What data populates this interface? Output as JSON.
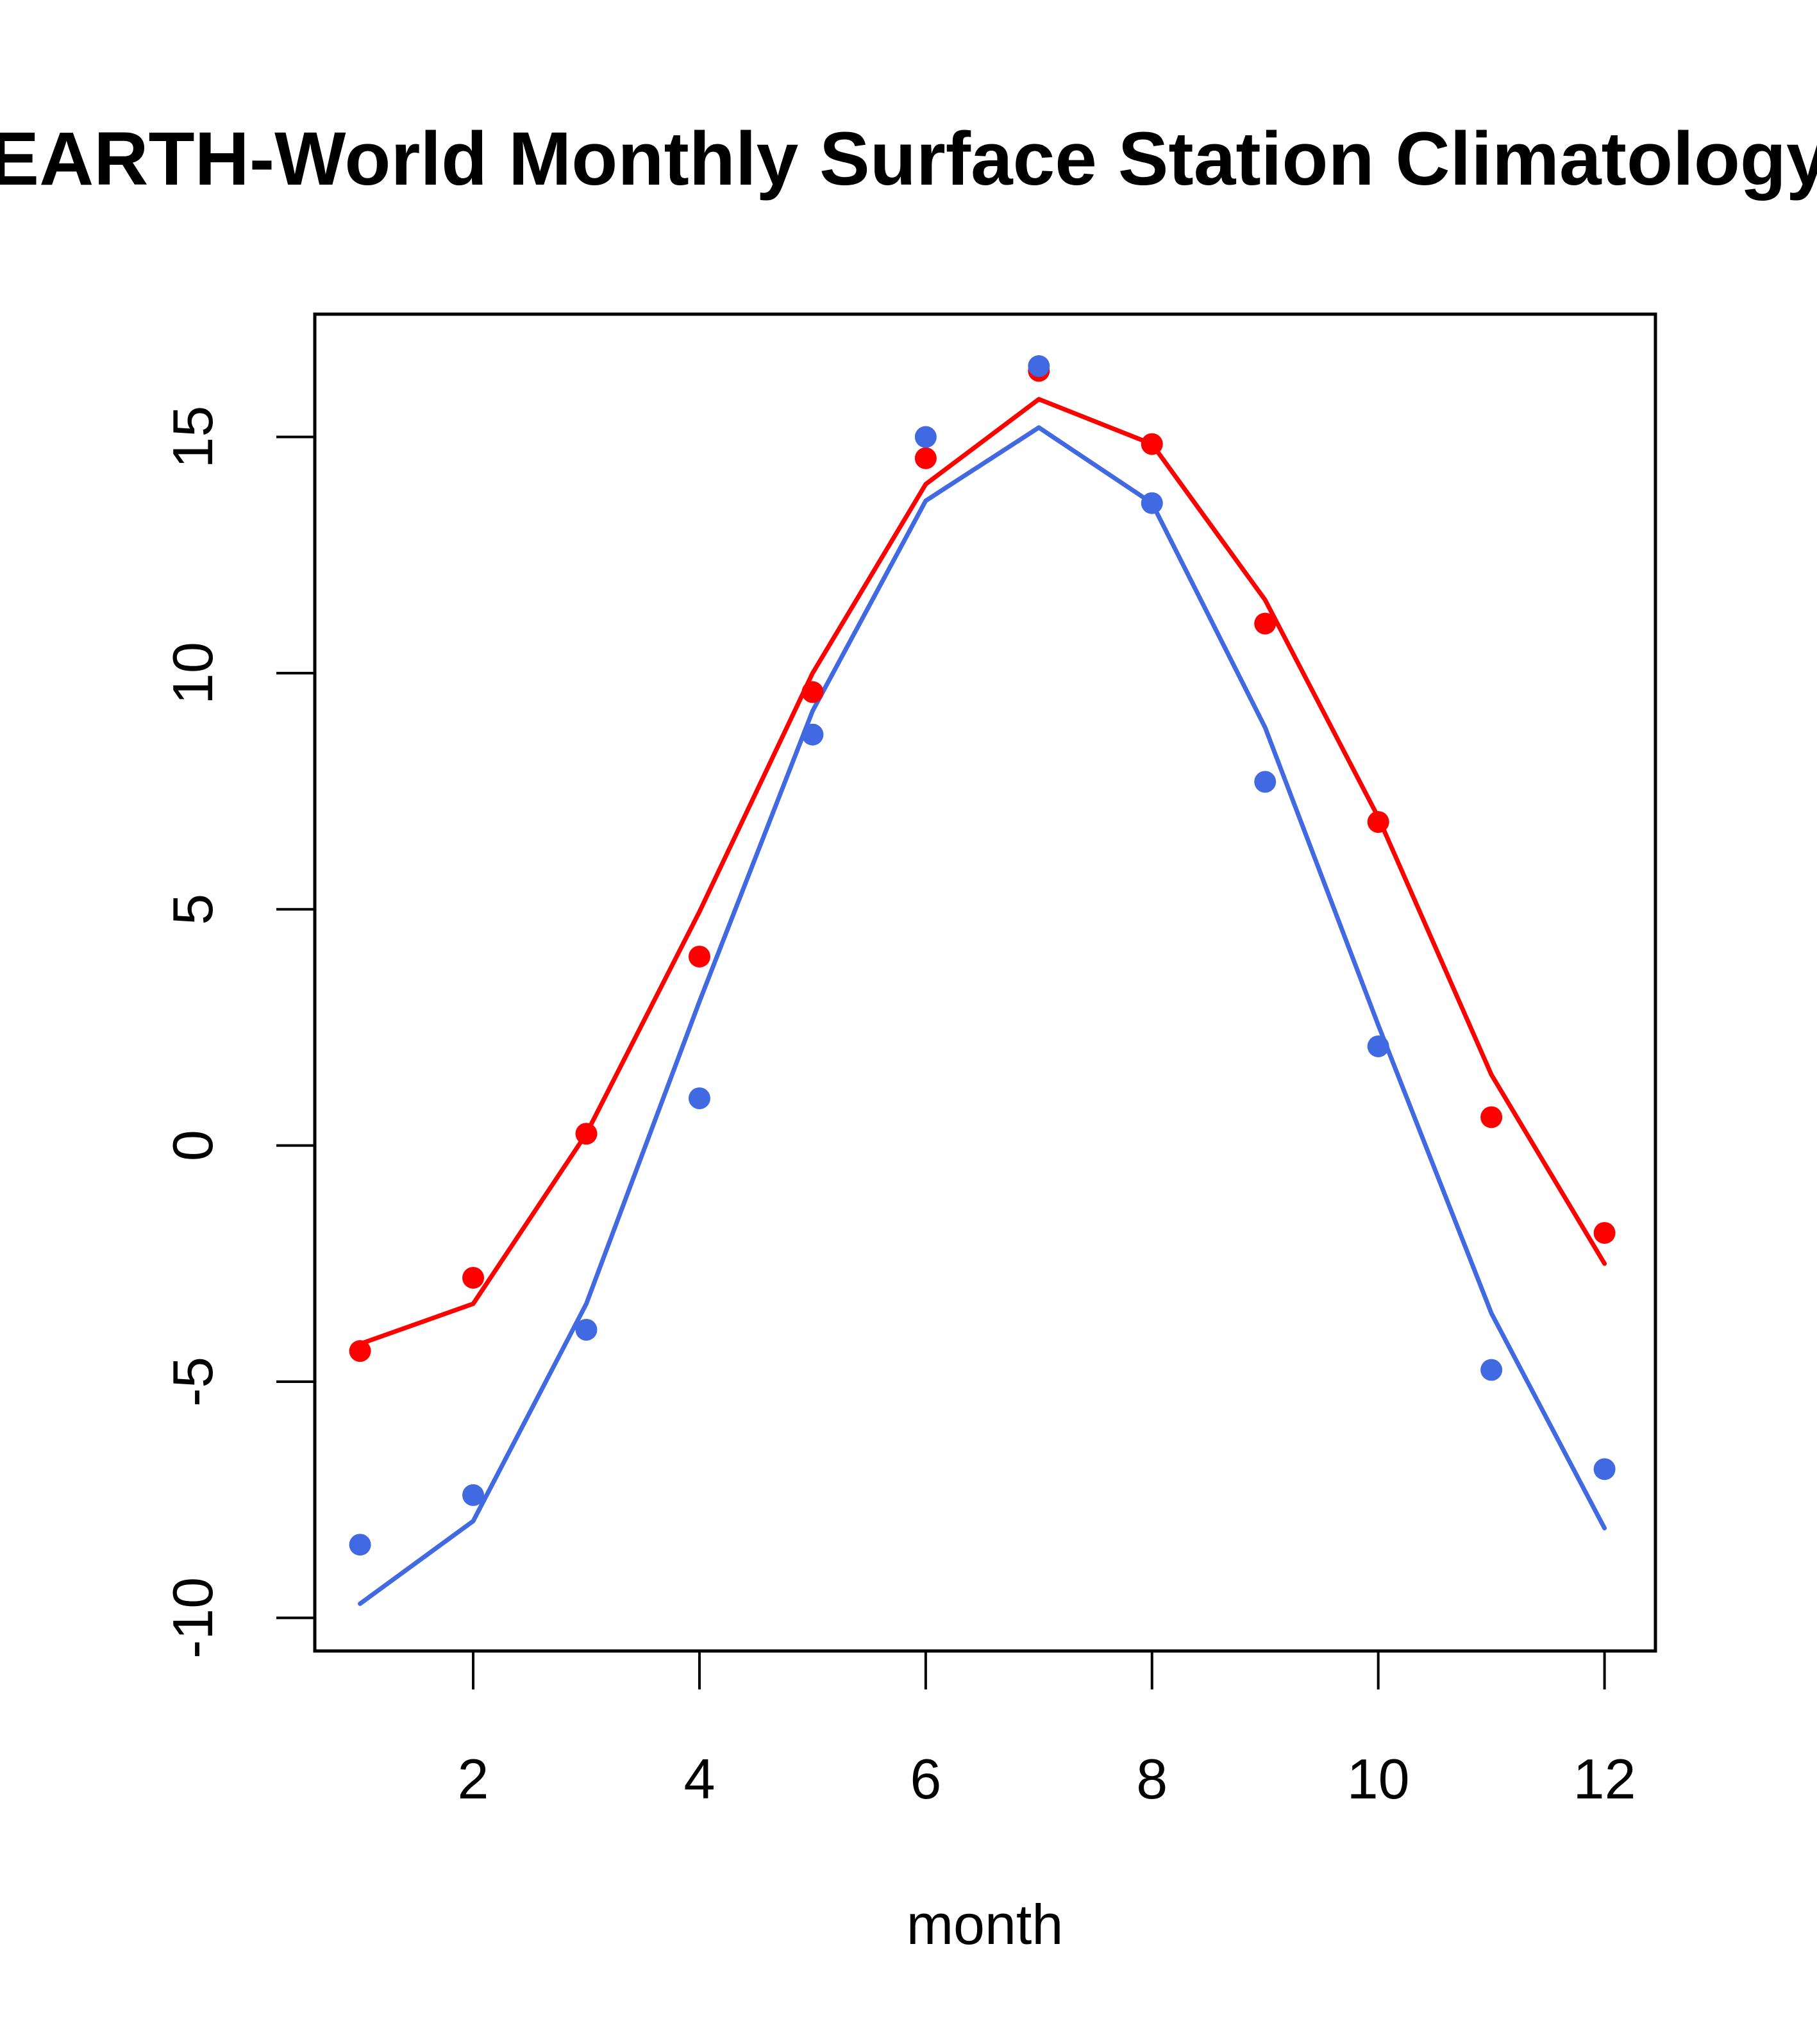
{
  "chart_data": {
    "type": "line",
    "title": "EARTH-World Monthly Surface Station Climatology",
    "xlabel": "month",
    "ylabel": "",
    "xlim": [
      0.6,
      12.45
    ],
    "ylim": [
      -10.7,
      17.6
    ],
    "x_ticks": [
      2,
      4,
      6,
      8,
      10,
      12
    ],
    "x_tick_labels": [
      "2",
      "4",
      "6",
      "8",
      "10",
      "12"
    ],
    "y_ticks": [
      -10,
      -5,
      0,
      5,
      10,
      15
    ],
    "y_tick_labels": [
      "-10",
      "-5",
      "0",
      "5",
      "10",
      "15"
    ],
    "grid": false,
    "legend": "none",
    "x": [
      1,
      2,
      3,
      4,
      5,
      6,
      7,
      8,
      9,
      10,
      11,
      12
    ],
    "series": [
      {
        "name": "red-points",
        "kind": "points",
        "color": "#FF0000",
        "values": [
          -4.35,
          -2.8,
          0.25,
          4.0,
          9.6,
          14.55,
          16.4,
          14.85,
          11.05,
          6.85,
          0.6,
          -1.85
        ]
      },
      {
        "name": "red-line",
        "kind": "line",
        "color": "#FF0000",
        "values": [
          -4.2,
          -3.35,
          0.25,
          4.95,
          10.0,
          14.0,
          15.8,
          14.85,
          11.55,
          6.95,
          1.5,
          -2.5
        ]
      },
      {
        "name": "blue-points",
        "kind": "points",
        "color": "#4169E1",
        "values": [
          -8.45,
          -7.4,
          -3.9,
          1.0,
          8.7,
          15.0,
          16.5,
          13.6,
          7.7,
          2.1,
          -4.75,
          -6.85
        ]
      },
      {
        "name": "blue-line",
        "kind": "line",
        "color": "#4169E1",
        "values": [
          -9.7,
          -7.95,
          -3.35,
          3.05,
          9.2,
          13.65,
          15.2,
          13.6,
          8.85,
          2.55,
          -3.55,
          -8.1
        ]
      }
    ]
  }
}
